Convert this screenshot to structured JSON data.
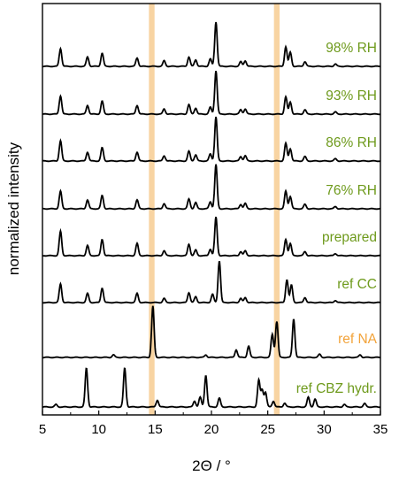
{
  "chart_data": {
    "type": "line",
    "title": "",
    "xlabel": "2Θ / °",
    "ylabel": "normalized intensity",
    "xlim": [
      5,
      35
    ],
    "x_ticks": [
      5,
      10,
      15,
      20,
      25,
      30,
      35
    ],
    "y_ticks_shown": false,
    "grid": false,
    "legend": "labels on traces, right side",
    "highlight_bands": [
      {
        "x_center": 14.7,
        "width": 0.5,
        "color": "#f8d4a2"
      },
      {
        "x_center": 25.8,
        "width": 0.5,
        "color": "#f8d4a2"
      }
    ],
    "series": [
      {
        "name": "98% RH",
        "color": "#000000",
        "label_color": "#6e9a1c",
        "peaks": [
          [
            6.6,
            0.38
          ],
          [
            9.0,
            0.2
          ],
          [
            10.3,
            0.28
          ],
          [
            13.4,
            0.18
          ],
          [
            15.8,
            0.12
          ],
          [
            18.0,
            0.2
          ],
          [
            18.6,
            0.14
          ],
          [
            19.9,
            0.16
          ],
          [
            20.4,
            0.95
          ],
          [
            22.6,
            0.1
          ],
          [
            23.0,
            0.12
          ],
          [
            26.6,
            0.42
          ],
          [
            27.0,
            0.3
          ],
          [
            28.3,
            0.1
          ],
          [
            31.0,
            0.05
          ]
        ]
      },
      {
        "name": "93% RH",
        "color": "#000000",
        "label_color": "#6e9a1c",
        "peaks": [
          [
            6.6,
            0.42
          ],
          [
            9.0,
            0.2
          ],
          [
            10.3,
            0.3
          ],
          [
            13.4,
            0.2
          ],
          [
            15.8,
            0.12
          ],
          [
            18.0,
            0.22
          ],
          [
            18.6,
            0.14
          ],
          [
            19.9,
            0.16
          ],
          [
            20.4,
            1.0
          ],
          [
            22.6,
            0.1
          ],
          [
            23.0,
            0.12
          ],
          [
            26.6,
            0.4
          ],
          [
            27.0,
            0.28
          ],
          [
            28.3,
            0.1
          ],
          [
            31.0,
            0.05
          ]
        ]
      },
      {
        "name": "86% RH",
        "color": "#000000",
        "label_color": "#6e9a1c",
        "peaks": [
          [
            6.6,
            0.46
          ],
          [
            9.0,
            0.2
          ],
          [
            10.3,
            0.3
          ],
          [
            13.4,
            0.2
          ],
          [
            15.8,
            0.12
          ],
          [
            18.0,
            0.22
          ],
          [
            18.6,
            0.14
          ],
          [
            19.9,
            0.16
          ],
          [
            20.4,
            1.0
          ],
          [
            22.6,
            0.1
          ],
          [
            23.0,
            0.12
          ],
          [
            26.6,
            0.4
          ],
          [
            27.0,
            0.28
          ],
          [
            28.3,
            0.1
          ],
          [
            31.0,
            0.05
          ]
        ]
      },
      {
        "name": "76% RH",
        "color": "#000000",
        "label_color": "#6e9a1c",
        "peaks": [
          [
            6.6,
            0.4
          ],
          [
            9.0,
            0.2
          ],
          [
            10.3,
            0.3
          ],
          [
            13.4,
            0.2
          ],
          [
            15.8,
            0.12
          ],
          [
            18.0,
            0.22
          ],
          [
            18.6,
            0.14
          ],
          [
            19.9,
            0.16
          ],
          [
            20.4,
            1.0
          ],
          [
            22.6,
            0.1
          ],
          [
            23.0,
            0.12
          ],
          [
            26.6,
            0.4
          ],
          [
            27.0,
            0.28
          ],
          [
            28.3,
            0.1
          ],
          [
            31.0,
            0.05
          ]
        ]
      },
      {
        "name": "prepared",
        "color": "#000000",
        "label_color": "#6e9a1c",
        "peaks": [
          [
            6.6,
            0.6
          ],
          [
            9.0,
            0.25
          ],
          [
            10.3,
            0.4
          ],
          [
            13.4,
            0.3
          ],
          [
            15.8,
            0.12
          ],
          [
            18.0,
            0.28
          ],
          [
            18.6,
            0.14
          ],
          [
            19.9,
            0.16
          ],
          [
            20.4,
            0.95
          ],
          [
            22.6,
            0.1
          ],
          [
            23.0,
            0.12
          ],
          [
            26.6,
            0.4
          ],
          [
            27.0,
            0.3
          ],
          [
            28.3,
            0.1
          ],
          [
            31.0,
            0.05
          ]
        ]
      },
      {
        "name": "ref CC",
        "color": "#000000",
        "label_color": "#6e9a1c",
        "peaks": [
          [
            6.6,
            0.45
          ],
          [
            9.0,
            0.22
          ],
          [
            10.3,
            0.35
          ],
          [
            13.4,
            0.22
          ],
          [
            15.8,
            0.1
          ],
          [
            18.0,
            0.24
          ],
          [
            18.6,
            0.14
          ],
          [
            20.1,
            0.2
          ],
          [
            20.7,
            1.0
          ],
          [
            22.6,
            0.1
          ],
          [
            23.0,
            0.12
          ],
          [
            26.7,
            0.55
          ],
          [
            27.1,
            0.42
          ],
          [
            28.3,
            0.12
          ],
          [
            31.0,
            0.05
          ]
        ]
      },
      {
        "name": "ref NA",
        "color": "#000000",
        "label_color": "#f2a33a",
        "peaks": [
          [
            11.3,
            0.05
          ],
          [
            14.8,
            1.0
          ],
          [
            19.5,
            0.05
          ],
          [
            22.2,
            0.15
          ],
          [
            23.3,
            0.22
          ],
          [
            25.4,
            0.45
          ],
          [
            25.8,
            0.7
          ],
          [
            27.3,
            0.75
          ],
          [
            29.6,
            0.06
          ],
          [
            33.2,
            0.05
          ]
        ]
      },
      {
        "name": "ref CBZ hydr.",
        "color": "#000000",
        "label_color": "#6e9a1c",
        "peaks": [
          [
            6.2,
            0.05
          ],
          [
            8.9,
            0.8
          ],
          [
            12.3,
            0.8
          ],
          [
            15.2,
            0.14
          ],
          [
            18.5,
            0.12
          ],
          [
            19.0,
            0.2
          ],
          [
            19.5,
            0.65
          ],
          [
            20.7,
            0.18
          ],
          [
            24.2,
            0.55
          ],
          [
            24.5,
            0.35
          ],
          [
            24.8,
            0.3
          ],
          [
            25.5,
            0.12
          ],
          [
            26.5,
            0.08
          ],
          [
            28.6,
            0.2
          ],
          [
            29.2,
            0.16
          ],
          [
            31.8,
            0.05
          ],
          [
            33.6,
            0.07
          ]
        ]
      }
    ]
  }
}
